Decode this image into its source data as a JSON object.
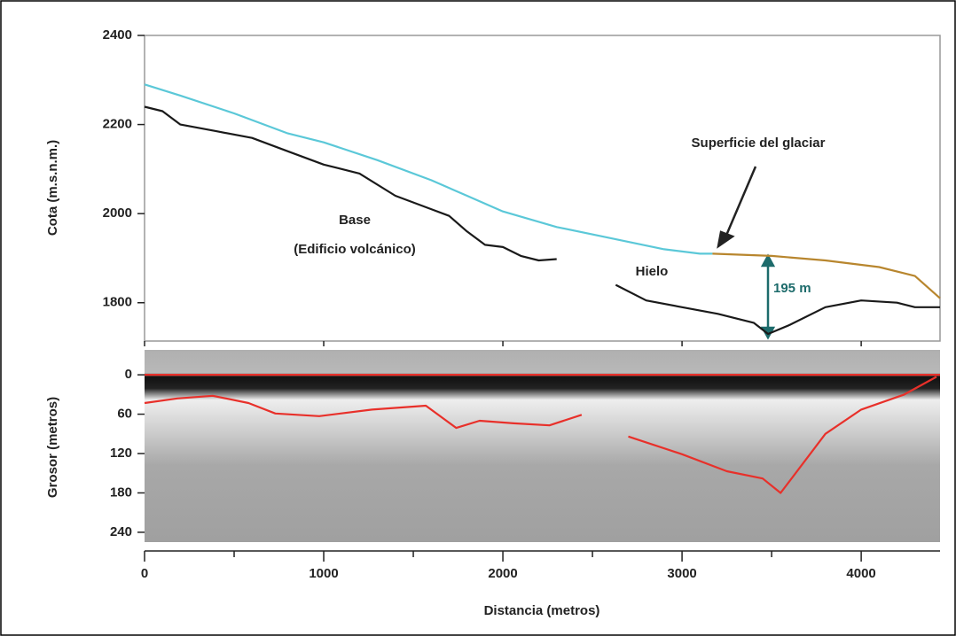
{
  "chart_data": [
    {
      "type": "line",
      "y_label": "Cota (m.s.n.m.)",
      "xlim": [
        0,
        4440
      ],
      "ylim": [
        1714,
        2400
      ],
      "xticks": [
        0,
        1000,
        2000,
        3000,
        4000
      ],
      "yticks": [
        1800,
        2000,
        2200,
        2400
      ],
      "annotations": [
        "Base",
        "(Edificio volcánico)",
        "Hielo",
        "Superficie del glaciar",
        "195 m"
      ],
      "series": [
        {
          "color": "#5bc8d8",
          "x": [
            0,
            200,
            500,
            800,
            1000,
            1300,
            1600,
            1800,
            2000,
            2300,
            2600,
            2900,
            3100,
            3170
          ],
          "values": [
            2290,
            2265,
            2225,
            2180,
            2160,
            2120,
            2075,
            2040,
            2005,
            1970,
            1945,
            1920,
            1910,
            1910
          ]
        },
        {
          "color": "#b8862e",
          "x": [
            3170,
            3500,
            3800,
            4100,
            4300,
            4440
          ],
          "values": [
            1910,
            1905,
            1895,
            1880,
            1860,
            1810
          ]
        },
        {
          "color": "#1a1a1a",
          "x": [
            0,
            100,
            200,
            400,
            600,
            800,
            1000,
            1200,
            1400,
            1600,
            1700,
            1800,
            1900,
            2000,
            2100,
            2200,
            2300,
            2450,
            2630,
            2800,
            3000,
            3200,
            3400,
            3480,
            3600,
            3800,
            4000,
            4200,
            4300,
            4440
          ],
          "values": [
            2240,
            2230,
            2200,
            2185,
            2170,
            2140,
            2110,
            2090,
            2040,
            2010,
            1995,
            1960,
            1930,
            1925,
            1905,
            1895,
            1898,
            null,
            1840,
            1805,
            1790,
            1775,
            1755,
            1730,
            1750,
            1790,
            1805,
            1800,
            1790,
            1790
          ]
        }
      ]
    },
    {
      "type": "line",
      "y_label": "Grosor (metros)",
      "x_label": "Distancia (metros)",
      "xlim": [
        0,
        4440
      ],
      "ylim": [
        -38,
        255
      ],
      "y_inverted": true,
      "xticks": [
        0,
        1000,
        2000,
        3000,
        4000
      ],
      "minor_xticks": [
        500,
        1500,
        2500,
        3500
      ],
      "yticks": [
        0,
        60,
        120,
        180,
        240
      ],
      "series": [
        {
          "color": "#e8302a",
          "x": [
            0,
            4440
          ],
          "values": [
            0,
            0
          ]
        },
        {
          "color": "#e8302a",
          "x": [
            0,
            183,
            380,
            580,
            730,
            975,
            1270,
            1570,
            1740,
            1870,
            2060,
            2260,
            2440,
            2550,
            2700,
            3000,
            3250,
            3450,
            3550,
            3670,
            3800,
            4000,
            4240,
            4420
          ],
          "values": [
            43,
            36,
            32,
            43,
            59,
            63,
            53,
            47,
            81,
            70,
            74,
            77,
            61,
            null,
            94,
            121,
            147,
            158,
            180,
            137,
            90,
            53,
            30,
            3
          ]
        }
      ]
    }
  ]
}
